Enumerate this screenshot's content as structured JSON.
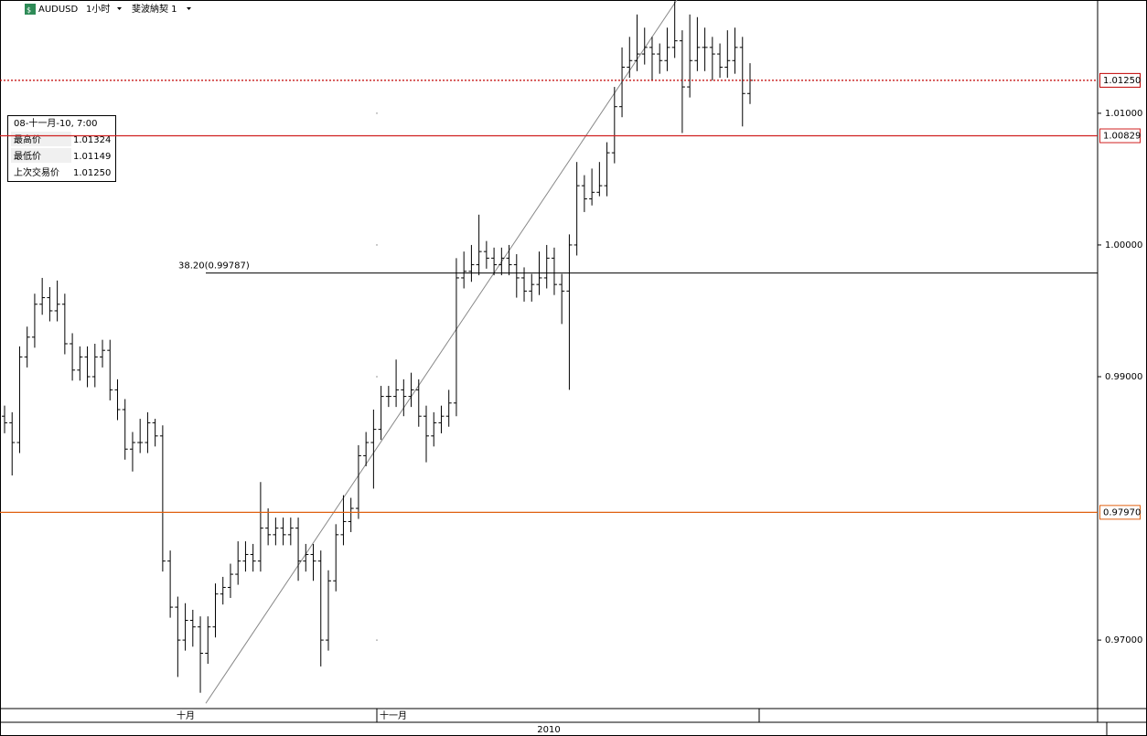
{
  "chart_data": {
    "type": "ohlc",
    "symbol": "AUDUSD",
    "timeframe": "1小时",
    "study": "斐波納契 1",
    "ylim": [
      0.9648,
      1.0186
    ],
    "yticks": [
      {
        "value": 1.01,
        "label": "1.01000"
      },
      {
        "value": 1.0,
        "label": "1.00000"
      },
      {
        "value": 0.99,
        "label": "0.99000"
      },
      {
        "value": 0.97,
        "label": "0.97000"
      }
    ],
    "x_axis_labels": [
      "十月",
      "十一月"
    ],
    "year_label": "2010",
    "open": [
      0.987,
      0.9865,
      0.985,
      0.9915,
      0.993,
      0.9955,
      0.996,
      0.995,
      0.9955,
      0.9925,
      0.9905,
      0.9915,
      0.99,
      0.9915,
      0.992,
      0.989,
      0.9875,
      0.9845,
      0.985,
      0.985,
      0.9865,
      0.9855,
      0.976,
      0.9725,
      0.97,
      0.9715,
      0.971,
      0.969,
      0.971,
      0.9735,
      0.974,
      0.975,
      0.976,
      0.9765,
      0.976,
      0.9785,
      0.978,
      0.9785,
      0.978,
      0.9785,
      0.976,
      0.9765,
      0.976,
      0.97,
      0.9745,
      0.978,
      0.979,
      0.98,
      0.984,
      0.985,
      0.986,
      0.9885,
      0.9885,
      0.989,
      0.9885,
      0.989,
      0.987,
      0.9855,
      0.9865,
      0.987,
      0.988,
      0.9975,
      0.998,
      0.9985,
      0.9995,
      0.999,
      0.9985,
      0.999,
      0.9985,
      0.9975,
      0.9965,
      0.997,
      0.9975,
      0.999,
      0.997,
      0.9965,
      1.0,
      1.0045,
      1.0035,
      1.004,
      1.0045,
      1.007,
      1.0105,
      1.0135,
      1.014,
      1.0145,
      1.015,
      1.0145,
      1.014,
      1.015,
      1.0155,
      1.012,
      1.014,
      1.015,
      1.015,
      1.0145,
      1.0135,
      1.014,
      1.015,
      1.0115
    ],
    "high": [
      0.9878,
      0.9873,
      0.9923,
      0.9938,
      0.9963,
      0.9975,
      0.9968,
      0.9973,
      0.9963,
      0.9933,
      0.9923,
      0.9923,
      0.9925,
      0.9928,
      0.9928,
      0.9898,
      0.9883,
      0.9858,
      0.9868,
      0.9873,
      0.9868,
      0.9863,
      0.9768,
      0.9733,
      0.9728,
      0.9723,
      0.9718,
      0.9718,
      0.9743,
      0.9748,
      0.9758,
      0.9775,
      0.9775,
      0.9773,
      0.982,
      0.98,
      0.9793,
      0.9793,
      0.9793,
      0.9793,
      0.9773,
      0.9773,
      0.9768,
      0.9753,
      0.9788,
      0.981,
      0.9808,
      0.9848,
      0.9858,
      0.9875,
      0.9893,
      0.9893,
      0.9913,
      0.9898,
      0.9903,
      0.9898,
      0.9878,
      0.9873,
      0.9878,
      0.989,
      0.999,
      0.9995,
      1.0,
      1.0023,
      1.0003,
      0.9998,
      0.9998,
      1.0,
      0.9993,
      0.9983,
      0.9978,
      0.9995,
      1.0,
      0.9998,
      0.9978,
      1.0008,
      1.0063,
      1.0053,
      1.0058,
      1.0063,
      1.0078,
      1.012,
      1.015,
      1.0158,
      1.0175,
      1.0165,
      1.0158,
      1.0153,
      1.0165,
      1.0185,
      1.0163,
      1.0175,
      1.0173,
      1.0165,
      1.0158,
      1.0153,
      1.0163,
      1.0165,
      1.0158,
      1.0138
    ],
    "low": [
      0.9857,
      0.9825,
      0.9842,
      0.9907,
      0.9922,
      0.9947,
      0.9942,
      0.9942,
      0.9917,
      0.9897,
      0.9897,
      0.9892,
      0.9892,
      0.9907,
      0.9882,
      0.9867,
      0.9837,
      0.9828,
      0.9842,
      0.9842,
      0.9847,
      0.9752,
      0.9717,
      0.9672,
      0.9692,
      0.9695,
      0.966,
      0.9682,
      0.9702,
      0.9727,
      0.9732,
      0.9742,
      0.9752,
      0.9752,
      0.9752,
      0.9772,
      0.9772,
      0.9772,
      0.9772,
      0.9745,
      0.9752,
      0.9745,
      0.968,
      0.9692,
      0.9737,
      0.9772,
      0.9782,
      0.9792,
      0.9832,
      0.9815,
      0.9852,
      0.9877,
      0.9877,
      0.987,
      0.9877,
      0.9862,
      0.9835,
      0.9847,
      0.9857,
      0.9862,
      0.987,
      0.9967,
      0.9972,
      0.9977,
      0.9982,
      0.9977,
      0.9977,
      0.9977,
      0.996,
      0.9957,
      0.9957,
      0.9962,
      0.9967,
      0.9962,
      0.994,
      0.989,
      0.9992,
      1.0025,
      1.003,
      1.0037,
      1.0037,
      1.0062,
      1.0097,
      1.0127,
      1.0132,
      1.0137,
      1.0125,
      1.013,
      1.0132,
      1.0142,
      1.0085,
      1.0112,
      1.0132,
      1.0132,
      1.0125,
      1.0127,
      1.0127,
      1.013,
      1.009,
      1.0107
    ],
    "close": [
      0.9865,
      0.985,
      0.9915,
      0.993,
      0.9955,
      0.996,
      0.995,
      0.9955,
      0.9925,
      0.9905,
      0.9915,
      0.99,
      0.9915,
      0.992,
      0.989,
      0.9875,
      0.9845,
      0.985,
      0.985,
      0.9865,
      0.9855,
      0.976,
      0.9725,
      0.97,
      0.9715,
      0.971,
      0.969,
      0.971,
      0.9735,
      0.974,
      0.975,
      0.976,
      0.9765,
      0.976,
      0.9785,
      0.978,
      0.9785,
      0.978,
      0.9785,
      0.976,
      0.9765,
      0.976,
      0.97,
      0.9745,
      0.978,
      0.979,
      0.98,
      0.984,
      0.985,
      0.986,
      0.9885,
      0.9885,
      0.989,
      0.9885,
      0.989,
      0.987,
      0.9855,
      0.9865,
      0.987,
      0.988,
      0.9975,
      0.998,
      0.9985,
      0.9995,
      0.999,
      0.9985,
      0.999,
      0.9985,
      0.9975,
      0.9965,
      0.997,
      0.9975,
      0.999,
      0.997,
      0.9965,
      1.0,
      1.0045,
      1.0035,
      1.004,
      1.0045,
      1.007,
      1.0105,
      1.0135,
      1.014,
      1.0145,
      1.015,
      1.0145,
      1.014,
      1.015,
      1.0155,
      1.012,
      1.014,
      1.015,
      1.015,
      1.0145,
      1.0135,
      1.014,
      1.015,
      1.0115,
      1.0125
    ],
    "color": "#000000",
    "levels": [
      {
        "value": 1.0125,
        "label": "1.01250",
        "color": "#c00000",
        "style": "dotted"
      },
      {
        "value": 1.00829,
        "label": "1.00829",
        "color": "#d02020",
        "style": "solid"
      },
      {
        "value": 0.9797,
        "label": "0.97970",
        "color": "#e06010",
        "style": "solid"
      }
    ],
    "fib_level": {
      "value": 0.99787,
      "label": "38.20(0.99787)"
    },
    "trendline": {
      "start": 0.9652,
      "end": 1.0186
    },
    "tooltip": {
      "title": "08-十一月-10, 7:00",
      "rows": [
        [
          "最高价",
          "1.01324"
        ],
        [
          "最低价",
          "1.01149"
        ],
        [
          "上次交易价",
          "1.01250"
        ]
      ]
    }
  }
}
